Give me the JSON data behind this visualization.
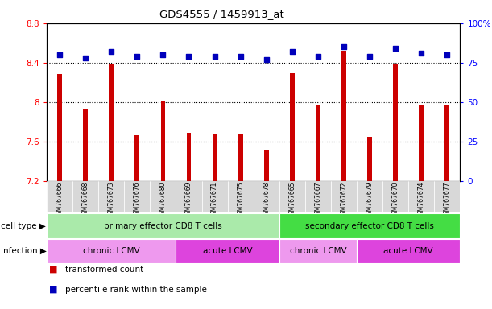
{
  "title": "GDS4555 / 1459913_at",
  "samples": [
    "GSM767666",
    "GSM767668",
    "GSM767673",
    "GSM767676",
    "GSM767680",
    "GSM767669",
    "GSM767671",
    "GSM767675",
    "GSM767678",
    "GSM767665",
    "GSM767667",
    "GSM767672",
    "GSM767679",
    "GSM767670",
    "GSM767674",
    "GSM767677"
  ],
  "bar_values": [
    8.28,
    7.93,
    8.39,
    7.66,
    8.01,
    7.69,
    7.68,
    7.68,
    7.51,
    8.29,
    7.97,
    8.52,
    7.65,
    8.39,
    7.97,
    7.97
  ],
  "dot_values": [
    80,
    78,
    82,
    79,
    80,
    79,
    79,
    79,
    77,
    82,
    79,
    85,
    79,
    84,
    81,
    80
  ],
  "ymin": 7.2,
  "ymax": 8.8,
  "ytick_values": [
    7.2,
    7.6,
    8.0,
    8.4,
    8.8
  ],
  "ytick_labels": [
    "7.2",
    "7.6",
    "8",
    "8.4",
    "8.8"
  ],
  "right_ytick_values": [
    0,
    25,
    50,
    75,
    100
  ],
  "right_ytick_labels": [
    "0",
    "25",
    "50",
    "75",
    "100%"
  ],
  "bar_color": "#cc0000",
  "dot_color": "#0000bb",
  "bg_color": "#ffffff",
  "xticklabel_bg": "#d8d8d8",
  "cell_type_groups": [
    {
      "label": "primary effector CD8 T cells",
      "start": 0,
      "end": 9,
      "color": "#aaeaaa"
    },
    {
      "label": "secondary effector CD8 T cells",
      "start": 9,
      "end": 16,
      "color": "#44dd44"
    }
  ],
  "infection_groups": [
    {
      "label": "chronic LCMV",
      "start": 0,
      "end": 5,
      "color": "#ee99ee"
    },
    {
      "label": "acute LCMV",
      "start": 5,
      "end": 9,
      "color": "#dd44dd"
    },
    {
      "label": "chronic LCMV",
      "start": 9,
      "end": 12,
      "color": "#ee99ee"
    },
    {
      "label": "acute LCMV",
      "start": 12,
      "end": 16,
      "color": "#dd44dd"
    }
  ],
  "legend_items": [
    {
      "color": "#cc0000",
      "label": "transformed count"
    },
    {
      "color": "#0000bb",
      "label": "percentile rank within the sample"
    }
  ],
  "bar_width": 0.18,
  "dot_size": 16
}
